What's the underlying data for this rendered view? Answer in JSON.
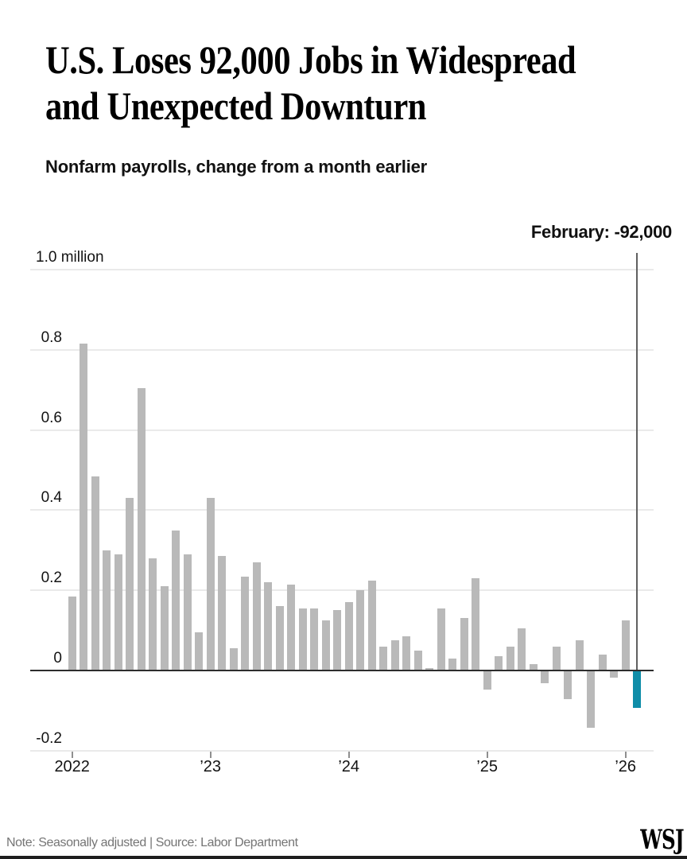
{
  "header": {
    "title": "U.S. Loses 92,000 Jobs in Widespread and Unexpected Downturn",
    "title_lines": [
      "U.S. Loses 92,000 Jobs in Widespread",
      "and Unexpected Downturn"
    ],
    "subtitle": "Nonfarm payrolls, change from a month earlier"
  },
  "chart_data": {
    "type": "bar",
    "title": "U.S. Loses 92,000 Jobs in Widespread and Unexpected Downturn",
    "subtitle": "Nonfarm payrolls, change from a month earlier",
    "unit": "thousands of jobs, seasonally adjusted",
    "annotation": "February: -92,000",
    "bar_color": "#b9b9b9",
    "highlight_color": "#0f8da8",
    "highlight_index": 49,
    "grid": true,
    "ylim_millions": [
      -0.2,
      1.0
    ],
    "y_axis": {
      "ticks": [
        {
          "label": "1.0 million",
          "value": 1.0
        },
        {
          "label": "0.8",
          "value": 0.8
        },
        {
          "label": "0.6",
          "value": 0.6
        },
        {
          "label": "0.4",
          "value": 0.4
        },
        {
          "label": "0.2",
          "value": 0.2
        },
        {
          "label": "0",
          "value": 0
        },
        {
          "label": "-0.2",
          "value": -0.2
        }
      ]
    },
    "x_axis": {
      "ticks": [
        {
          "label": "2022",
          "month_index": 0
        },
        {
          "label": "’23",
          "month_index": 12
        },
        {
          "label": "’24",
          "month_index": 24
        },
        {
          "label": "’25",
          "month_index": 36
        },
        {
          "label": "’26",
          "month_index": 48
        }
      ]
    },
    "months": [
      "Jan 2022",
      "Feb 2022",
      "Mar 2022",
      "Apr 2022",
      "May 2022",
      "Jun 2022",
      "Jul 2022",
      "Aug 2022",
      "Sep 2022",
      "Oct 2022",
      "Nov 2022",
      "Dec 2022",
      "Jan 2023",
      "Feb 2023",
      "Mar 2023",
      "Apr 2023",
      "May 2023",
      "Jun 2023",
      "Jul 2023",
      "Aug 2023",
      "Sep 2023",
      "Oct 2023",
      "Nov 2023",
      "Dec 2023",
      "Jan 2024",
      "Feb 2024",
      "Mar 2024",
      "Apr 2024",
      "May 2024",
      "Jun 2024",
      "Jul 2024",
      "Aug 2024",
      "Sep 2024",
      "Oct 2024",
      "Nov 2024",
      "Dec 2024",
      "Jan 2025",
      "Feb 2025",
      "Mar 2025",
      "Apr 2025",
      "May 2025",
      "Jun 2025",
      "Jul 2025",
      "Aug 2025",
      "Sep 2025",
      "Oct 2025",
      "Nov 2025",
      "Dec 2025",
      "Jan 2026",
      "Feb 2026"
    ],
    "series": [
      {
        "name": "Nonfarm payrolls, change from a month earlier (thousands)",
        "values": [
          185,
          815,
          485,
          300,
          290,
          430,
          705,
          280,
          210,
          350,
          290,
          95,
          430,
          285,
          55,
          235,
          270,
          220,
          160,
          215,
          155,
          155,
          125,
          150,
          170,
          200,
          225,
          60,
          75,
          85,
          50,
          5,
          155,
          30,
          130,
          230,
          -45,
          35,
          60,
          105,
          15,
          -30,
          60,
          -70,
          75,
          -140,
          40,
          -15,
          125,
          -92
        ]
      }
    ]
  },
  "footer": {
    "note": "Note: Seasonally adjusted | Source: Labor Department",
    "logo": "WSJ"
  }
}
